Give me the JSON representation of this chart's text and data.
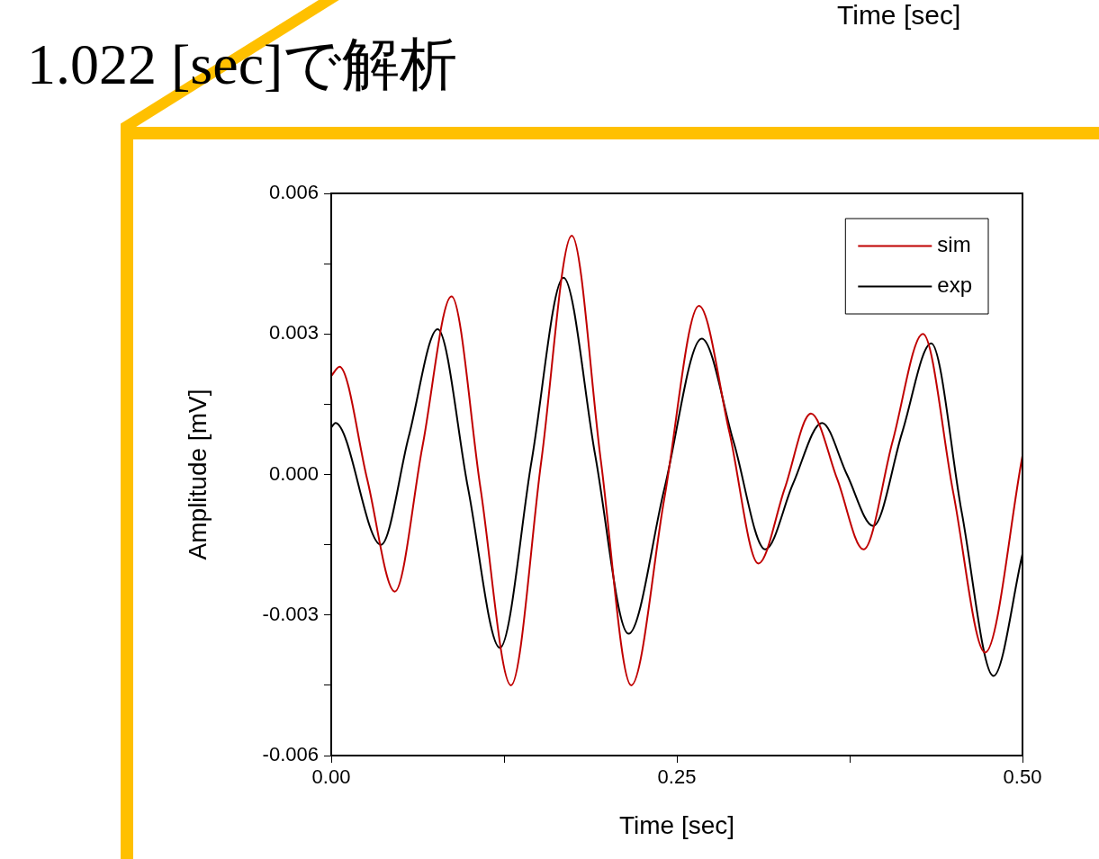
{
  "chart_data": {
    "type": "line",
    "title": "1.022 [sec]で解析",
    "xlabel": "Time [sec]",
    "ylabel": "Amplitude [mV]",
    "annotations": [
      "Time [sec]"
    ],
    "xlim": [
      0,
      0.5
    ],
    "ylim": [
      -0.006,
      0.006
    ],
    "xticks": [
      {
        "value": 0,
        "label": "0.00"
      },
      {
        "value": 0.125,
        "label": null
      },
      {
        "value": 0.25,
        "label": "0.25"
      },
      {
        "value": 0.375,
        "label": null
      },
      {
        "value": 0.5,
        "label": "0.50"
      }
    ],
    "yticks": [
      {
        "value": -0.006,
        "label": "-0.006"
      },
      {
        "value": -0.0045,
        "label": null
      },
      {
        "value": -0.003,
        "label": "-0.003"
      },
      {
        "value": -0.0015,
        "label": null
      },
      {
        "value": 0,
        "label": "0.000"
      },
      {
        "value": 0.0015,
        "label": null
      },
      {
        "value": 0.003,
        "label": "0.003"
      },
      {
        "value": 0.0045,
        "label": null
      },
      {
        "value": 0.006,
        "label": "0.006"
      }
    ],
    "grid": false,
    "legend": "top right",
    "marker": "none",
    "line_style": "solid",
    "series": [
      {
        "name": "sim",
        "color": "#c00000",
        "x": [
          0,
          0.006,
          0.026,
          0.046,
          0.066,
          0.087,
          0.108,
          0.13,
          0.152,
          0.174,
          0.195,
          0.217,
          0.241,
          0.266,
          0.288,
          0.309,
          0.328,
          0.347,
          0.366,
          0.385,
          0.406,
          0.428,
          0.45,
          0.473,
          0.5
        ],
        "values": [
          0.0021,
          0.0023,
          -0.0001,
          -0.0025,
          0.0006,
          0.0038,
          -0.0003,
          -0.0045,
          0.0003,
          0.0051,
          0.0003,
          -0.0045,
          -0.0005,
          0.0036,
          0.0009,
          -0.0019,
          -0.0003,
          0.0013,
          -0.0001,
          -0.0016,
          0.0007,
          0.003,
          -0.0004,
          -0.0038,
          0.0004
        ]
      },
      {
        "name": "exp",
        "color": "#000000",
        "x": [
          0,
          0.003,
          0.036,
          0.056,
          0.077,
          0.099,
          0.122,
          0.145,
          0.168,
          0.191,
          0.215,
          0.241,
          0.268,
          0.291,
          0.314,
          0.334,
          0.355,
          0.373,
          0.392,
          0.413,
          0.434,
          0.456,
          0.479,
          0.5
        ],
        "values": [
          0.001,
          0.0011,
          -0.0015,
          0.0008,
          0.0031,
          -0.0003,
          -0.0037,
          0.0003,
          0.0042,
          0.0004,
          -0.0034,
          -0.0003,
          0.0029,
          0.0007,
          -0.0016,
          -0.0002,
          0.0011,
          0,
          -0.0011,
          0.0009,
          0.0028,
          -0.0008,
          -0.0043,
          -0.0017
        ]
      }
    ]
  }
}
